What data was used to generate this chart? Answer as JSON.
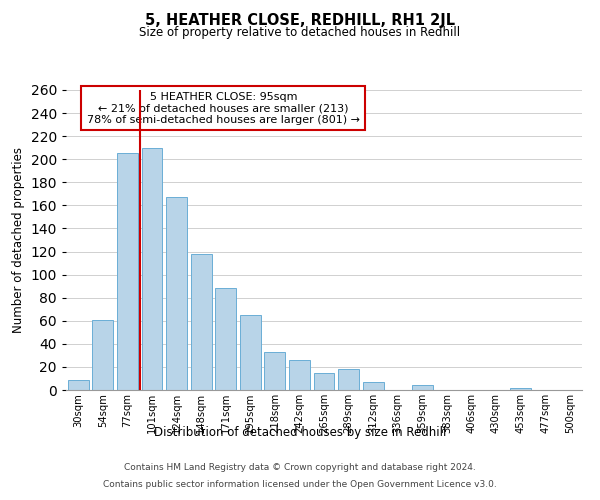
{
  "title": "5, HEATHER CLOSE, REDHILL, RH1 2JL",
  "subtitle": "Size of property relative to detached houses in Redhill",
  "xlabel": "Distribution of detached houses by size in Redhill",
  "ylabel": "Number of detached properties",
  "footer_line1": "Contains HM Land Registry data © Crown copyright and database right 2024.",
  "footer_line2": "Contains public sector information licensed under the Open Government Licence v3.0.",
  "bar_labels": [
    "30sqm",
    "54sqm",
    "77sqm",
    "101sqm",
    "124sqm",
    "148sqm",
    "171sqm",
    "195sqm",
    "218sqm",
    "242sqm",
    "265sqm",
    "289sqm",
    "312sqm",
    "336sqm",
    "359sqm",
    "383sqm",
    "406sqm",
    "430sqm",
    "453sqm",
    "477sqm",
    "500sqm"
  ],
  "bar_values": [
    9,
    61,
    205,
    210,
    167,
    118,
    88,
    65,
    33,
    26,
    15,
    18,
    7,
    0,
    4,
    0,
    0,
    0,
    2,
    0,
    0
  ],
  "bar_color": "#b8d4e8",
  "bar_edge_color": "#6aaed6",
  "highlight_bar_index": 3,
  "highlight_color": "#cc0000",
  "annotation_title": "5 HEATHER CLOSE: 95sqm",
  "annotation_line1": "← 21% of detached houses are smaller (213)",
  "annotation_line2": "78% of semi-detached houses are larger (801) →",
  "annotation_box_color": "#ffffff",
  "annotation_box_edge": "#cc0000",
  "ylim": [
    0,
    260
  ],
  "yticks": [
    0,
    20,
    40,
    60,
    80,
    100,
    120,
    140,
    160,
    180,
    200,
    220,
    240,
    260
  ]
}
